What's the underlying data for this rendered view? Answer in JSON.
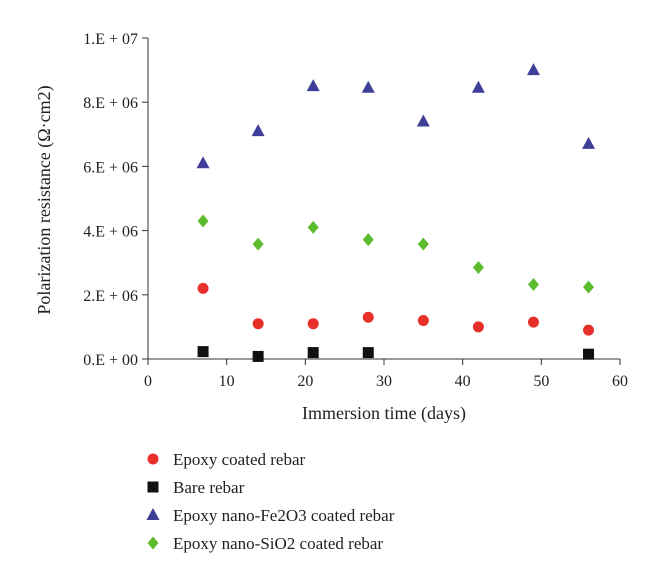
{
  "chart_data": {
    "type": "scatter",
    "xlabel": "Immersion time (days)",
    "ylabel": "Polarization resistance (Ω·cm2)",
    "xlim": [
      0,
      60
    ],
    "ylim": [
      0,
      10000000
    ],
    "x_ticks": [
      0,
      10,
      20,
      30,
      40,
      50,
      60
    ],
    "x_tick_labels": [
      "0",
      "10",
      "20",
      "30",
      "40",
      "50",
      "60"
    ],
    "y_ticks": [
      0,
      2000000,
      4000000,
      6000000,
      8000000,
      10000000
    ],
    "y_tick_labels": [
      "0.E + 00",
      "2.E + 06",
      "4.E + 06",
      "6.E + 06",
      "8.E + 06",
      "1.E + 07"
    ],
    "grid": false,
    "legend_position": "below",
    "series": [
      {
        "name": "Epoxy coated rebar",
        "marker": "circle",
        "color": "#e8302a",
        "points": [
          [
            7,
            2200000
          ],
          [
            14,
            1100000
          ],
          [
            21,
            1100000
          ],
          [
            28,
            1300000
          ],
          [
            35,
            1200000
          ],
          [
            42,
            1000000
          ],
          [
            49,
            1150000
          ],
          [
            56,
            900000
          ]
        ]
      },
      {
        "name": "Bare rebar",
        "marker": "square",
        "color": "#111111",
        "points": [
          [
            7,
            230000
          ],
          [
            14,
            80000
          ],
          [
            21,
            200000
          ],
          [
            28,
            200000
          ],
          [
            56,
            150000
          ]
        ]
      },
      {
        "name": "Epoxy nano-Fe2O3 coated rebar",
        "marker": "triangle",
        "color": "#3f3f9a",
        "points": [
          [
            7,
            6100000
          ],
          [
            14,
            7100000
          ],
          [
            21,
            8500000
          ],
          [
            28,
            8450000
          ],
          [
            35,
            7400000
          ],
          [
            42,
            8450000
          ],
          [
            49,
            9000000
          ],
          [
            56,
            6700000
          ]
        ]
      },
      {
        "name": "Epoxy nano-SiO2 coated rebar",
        "marker": "diamond",
        "color": "#5dbb2f",
        "points": [
          [
            7,
            4300000
          ],
          [
            14,
            3580000
          ],
          [
            21,
            4100000
          ],
          [
            28,
            3720000
          ],
          [
            35,
            3580000
          ],
          [
            42,
            2850000
          ],
          [
            49,
            2320000
          ],
          [
            56,
            2240000
          ]
        ]
      }
    ]
  }
}
